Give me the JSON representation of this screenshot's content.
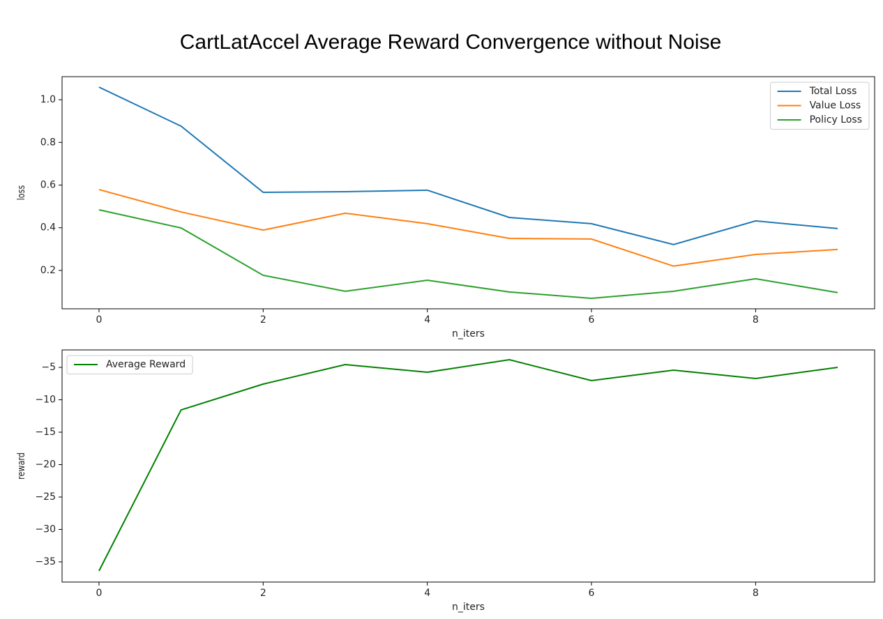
{
  "title": "CartLatAccel Average Reward Convergence without Noise",
  "chart_data": [
    {
      "type": "line",
      "xlabel": "n_iters",
      "ylabel": "loss",
      "x": [
        0,
        1,
        2,
        3,
        4,
        5,
        6,
        7,
        8,
        9
      ],
      "series": [
        {
          "name": "Total Loss",
          "color": "#1f77b4",
          "values": [
            1.059,
            0.876,
            0.566,
            0.569,
            0.576,
            0.448,
            0.419,
            0.321,
            0.432,
            0.396
          ]
        },
        {
          "name": "Value Loss",
          "color": "#ff7f0e",
          "values": [
            0.579,
            0.474,
            0.389,
            0.468,
            0.419,
            0.35,
            0.347,
            0.22,
            0.275,
            0.298
          ]
        },
        {
          "name": "Policy Loss",
          "color": "#2ca02c",
          "values": [
            0.484,
            0.399,
            0.177,
            0.102,
            0.154,
            0.099,
            0.069,
            0.102,
            0.161,
            0.096
          ]
        }
      ],
      "xlim": [
        -0.45,
        9.45
      ],
      "xticks": [
        0,
        2,
        4,
        6,
        8
      ],
      "ylim": [
        0.02,
        1.108
      ],
      "yticks": [
        0.2,
        0.4,
        0.6,
        0.8,
        {
          "value": 1,
          "label": "1.0"
        }
      ],
      "grid": false,
      "legend": "upper right"
    },
    {
      "type": "line",
      "xlabel": "n_iters",
      "ylabel": "reward",
      "x": [
        0,
        1,
        2,
        3,
        4,
        5,
        6,
        7,
        8,
        9
      ],
      "series": [
        {
          "name": "Average Reward",
          "color": "#008000",
          "values": [
            -36.4,
            -11.56,
            -7.58,
            -4.57,
            -5.75,
            -3.82,
            -7.04,
            -5.43,
            -6.72,
            -5.0
          ]
        }
      ],
      "xlim": [
        -0.45,
        9.45
      ],
      "xticks": [
        0,
        2,
        4,
        6,
        8
      ],
      "ylim": [
        -38.12,
        -2.31
      ],
      "yticks": [
        {
          "value": -35,
          "label": "−35"
        },
        {
          "value": -30,
          "label": "−30"
        },
        {
          "value": -25,
          "label": "−25"
        },
        {
          "value": -20,
          "label": "−20"
        },
        {
          "value": -15,
          "label": "−15"
        },
        {
          "value": -10,
          "label": "−10"
        },
        {
          "value": -5,
          "label": "−5"
        }
      ],
      "grid": false,
      "legend": "upper left"
    }
  ]
}
